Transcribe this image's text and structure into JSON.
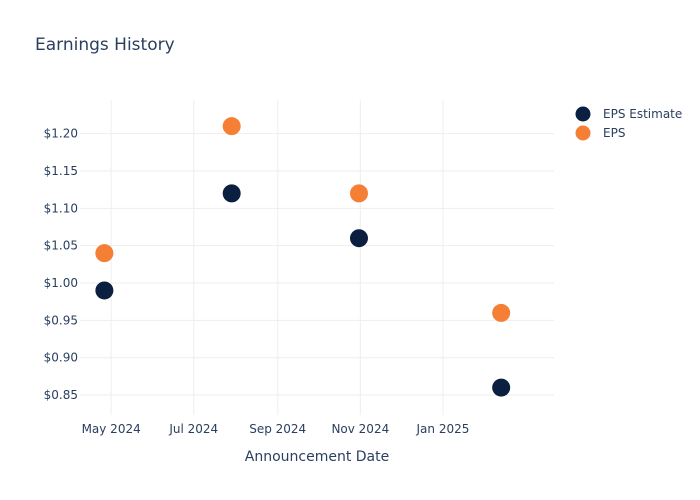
{
  "chart_data": {
    "type": "scatter",
    "title": "Earnings History",
    "xlabel": "Announcement Date",
    "ylabel": "",
    "x_ticks": [
      {
        "date": "2024-05-01",
        "label": "May 2024"
      },
      {
        "date": "2024-07-01",
        "label": "Jul 2024"
      },
      {
        "date": "2024-09-01",
        "label": "Sep 2024"
      },
      {
        "date": "2024-11-01",
        "label": "Nov 2024"
      },
      {
        "date": "2025-01-01",
        "label": "Jan 2025"
      }
    ],
    "y_ticks": [
      {
        "value": 0.85,
        "label": "$0.85"
      },
      {
        "value": 0.9,
        "label": "$0.90"
      },
      {
        "value": 0.95,
        "label": "$0.95"
      },
      {
        "value": 1.0,
        "label": "$1.00"
      },
      {
        "value": 1.05,
        "label": "$1.05"
      },
      {
        "value": 1.1,
        "label": "$1.10"
      },
      {
        "value": 1.15,
        "label": "$1.15"
      },
      {
        "value": 1.2,
        "label": "$1.20"
      }
    ],
    "xlim": [
      "2024-04-08",
      "2025-03-24"
    ],
    "ylim": [
      0.83,
      1.245
    ],
    "grid": true,
    "legend_position": "top-right",
    "series": [
      {
        "name": "EPS Estimate",
        "color": "#0b1f40",
        "points": [
          {
            "x": "2024-04-26",
            "y": 0.99
          },
          {
            "x": "2024-07-29",
            "y": 1.12
          },
          {
            "x": "2024-10-31",
            "y": 1.06
          },
          {
            "x": "2025-02-13",
            "y": 0.86
          }
        ]
      },
      {
        "name": "EPS",
        "color": "#f47f35",
        "points": [
          {
            "x": "2024-04-26",
            "y": 1.04
          },
          {
            "x": "2024-07-29",
            "y": 1.21
          },
          {
            "x": "2024-10-31",
            "y": 1.12
          },
          {
            "x": "2025-02-13",
            "y": 0.96
          }
        ]
      }
    ]
  }
}
